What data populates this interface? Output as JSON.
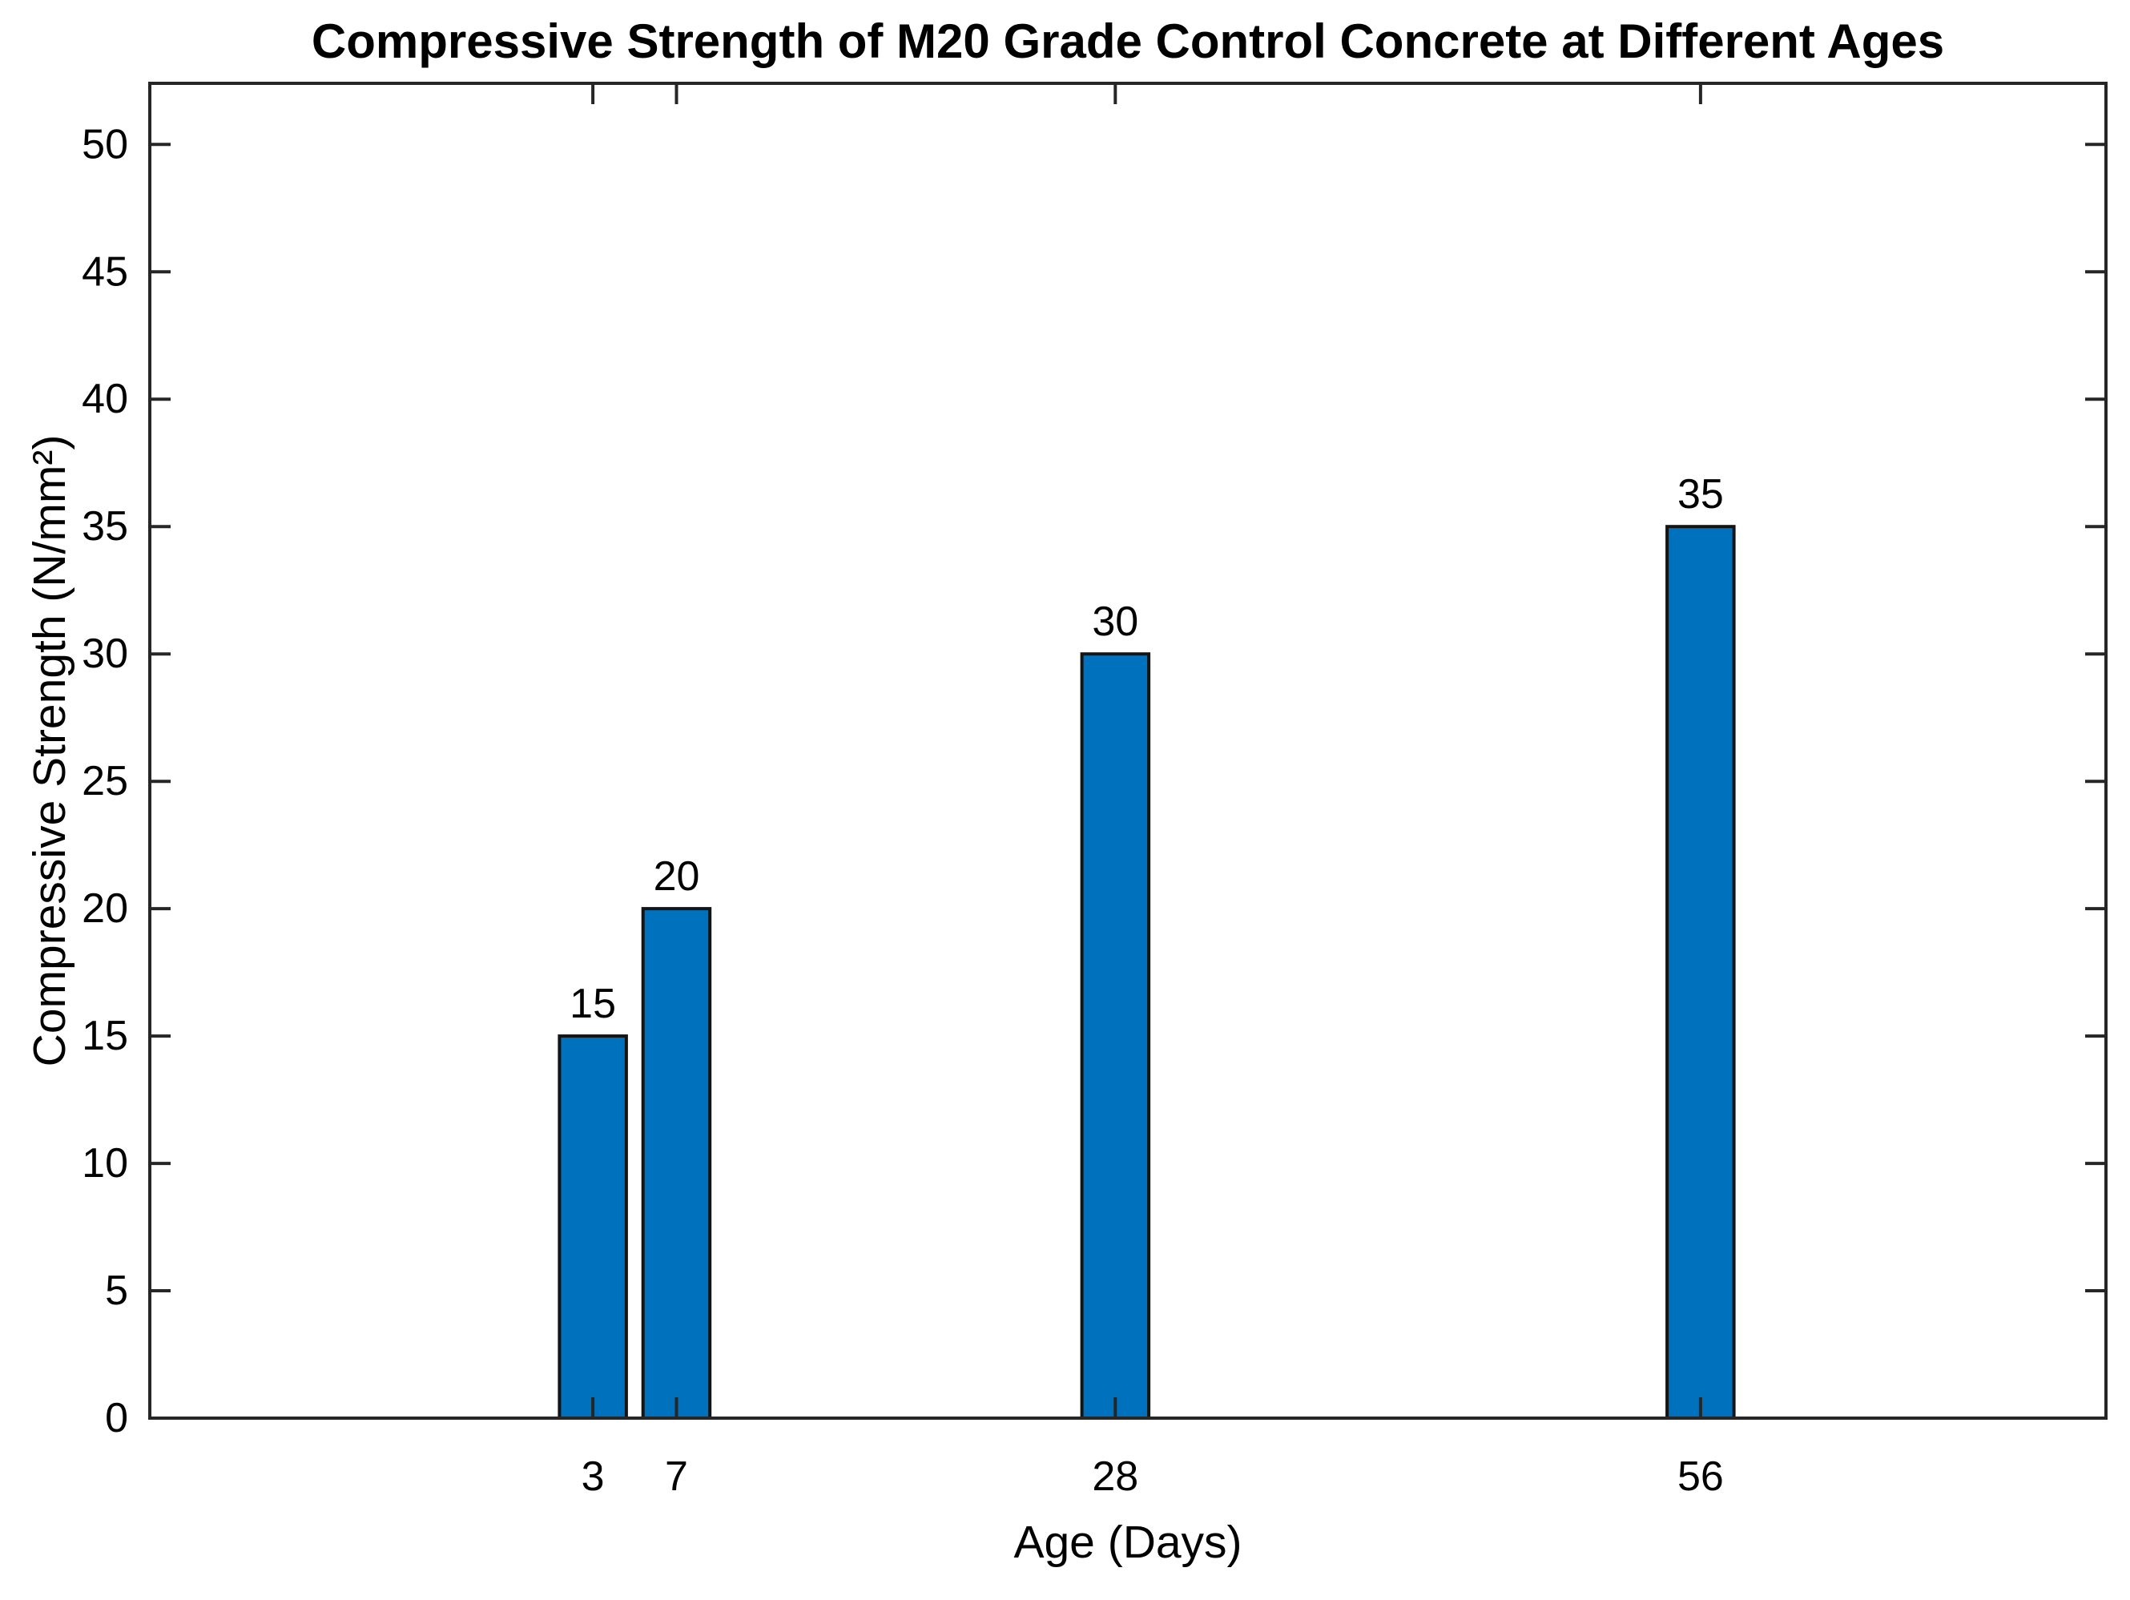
{
  "figure": {
    "background": "#FFFFFF"
  },
  "chart_data": {
    "type": "bar",
    "title": "Compressive Strength of M20 Grade Control Concrete at Different Ages",
    "xlabel": "Age (Days)",
    "ylabel": "Compressive Strength (N/mm²)",
    "x": [
      3,
      7,
      28,
      56
    ],
    "xtick_labels": [
      "3",
      "7",
      "28",
      "56"
    ],
    "values": [
      15,
      20,
      30,
      35
    ],
    "bar_value_labels": [
      "15",
      "20",
      "30",
      "35"
    ],
    "yticks": [
      0,
      5,
      10,
      15,
      20,
      25,
      30,
      35,
      40,
      45,
      50
    ],
    "ytick_labels": [
      "0",
      "5",
      "10",
      "15",
      "20",
      "25",
      "30",
      "35",
      "40",
      "45",
      "50"
    ],
    "xlim": [
      -18.2,
      75.4
    ],
    "ylim": [
      0,
      52.4
    ],
    "bar_width_data_units": 3.2,
    "grid": false,
    "legend": "none",
    "box": true,
    "tick_direction": "in",
    "colors": {
      "bar_fill": "#0072BD",
      "bar_edge": "#141414",
      "axis": "#262626",
      "text": "#000000",
      "background": "#FFFFFF"
    }
  }
}
